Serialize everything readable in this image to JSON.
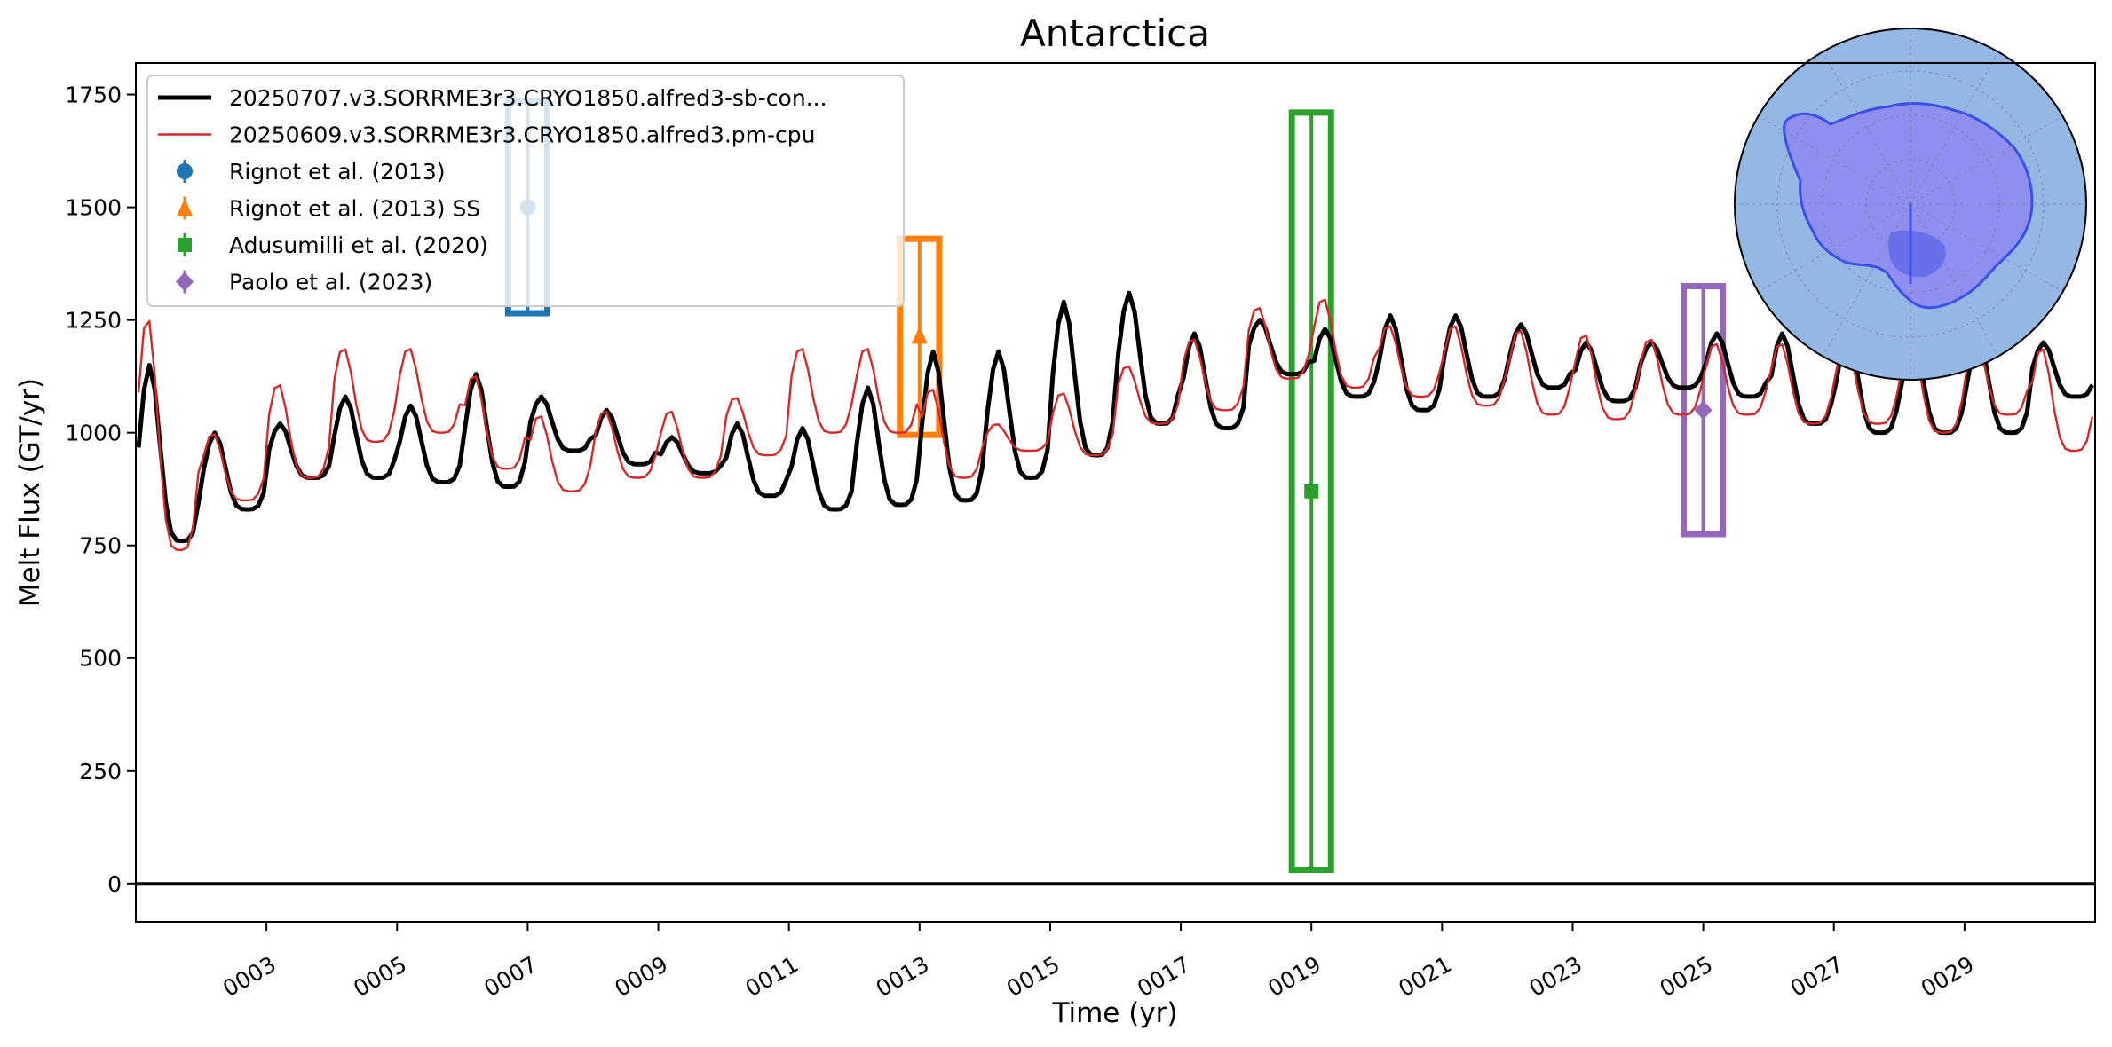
{
  "chart_data": {
    "type": "line",
    "title": "Antarctica",
    "xlabel": "Time (yr)",
    "ylabel": "Melt Flux (GT/yr)",
    "xlim": [
      1.0,
      31.0
    ],
    "ylim": [
      -85,
      1820
    ],
    "x_ticks": [
      3,
      5,
      7,
      9,
      11,
      13,
      15,
      17,
      19,
      21,
      23,
      25,
      27,
      29
    ],
    "x_tick_labels": [
      "0003",
      "0005",
      "0007",
      "0009",
      "0011",
      "0013",
      "0015",
      "0017",
      "0019",
      "0021",
      "0023",
      "0025",
      "0027",
      "0029"
    ],
    "y_ticks": [
      0,
      250,
      500,
      750,
      1000,
      1250,
      1500,
      1750
    ],
    "y_tick_labels": [
      "0",
      "250",
      "500",
      "750",
      "1000",
      "1250",
      "1500",
      "1750"
    ],
    "zero_line": 0,
    "grid": false,
    "legend_position": "upper-left",
    "series": [
      {
        "name": "20250707.v3.SORRME3r3.CRYO1850.alfred3-sb-con...",
        "color": "#000000",
        "style": "thick-line",
        "annual_peaks": [
          1150,
          1000,
          1020,
          1080,
          1060,
          1130,
          1080,
          1050,
          990,
          1020,
          1010,
          1100,
          1180,
          1180,
          1290,
          1310,
          1220,
          1250,
          1230,
          1260,
          1260,
          1240,
          1200,
          1200,
          1220,
          1220,
          1220,
          1210,
          1210,
          1200
        ],
        "annual_troughs": [
          760,
          830,
          900,
          900,
          890,
          880,
          960,
          930,
          910,
          860,
          830,
          840,
          850,
          900,
          950,
          1020,
          1010,
          1130,
          1080,
          1050,
          1080,
          1100,
          1070,
          1100,
          1080,
          1020,
          1000,
          1000,
          1000,
          1080
        ]
      },
      {
        "name": "20250609.v3.SORRME3r3.CRYO1850.alfred3.pm-cpu",
        "color": "#d62728",
        "style": "thin-line",
        "annual_peaks": [
          1260,
          1000,
          1110,
          1190,
          1190,
          1130,
          1040,
          1050,
          1050,
          1080,
          1190,
          1190,
          1100,
          1020,
          1090,
          1150,
          1210,
          1280,
          1300,
          1240,
          1240,
          1230,
          1220,
          1210,
          1200,
          1200,
          1200,
          1210,
          1200,
          1190
        ],
        "annual_troughs": [
          740,
          850,
          900,
          980,
          1000,
          920,
          870,
          900,
          900,
          950,
          1000,
          1000,
          900,
          960,
          950,
          1020,
          1050,
          1120,
          1100,
          1080,
          1060,
          1040,
          1030,
          1040,
          1040,
          1020,
          1020,
          1000,
          1040,
          960
        ]
      }
    ],
    "observations": [
      {
        "name": "Rignot et al. (2013)",
        "color": "#1f77b4",
        "marker": "circle",
        "x": 7.0,
        "y": 1500,
        "ymin": 1265,
        "ymax": 1735,
        "xmin": 6.7,
        "xmax": 7.3
      },
      {
        "name": "Rignot et al. (2013) SS",
        "color": "#ff7f0e",
        "marker": "triangle",
        "x": 13.0,
        "y": 1215,
        "ymin": 995,
        "ymax": 1430,
        "xmin": 12.7,
        "xmax": 13.3
      },
      {
        "name": "Adusumilli et al. (2020)",
        "color": "#2ca02c",
        "marker": "square",
        "x": 19.0,
        "y": 870,
        "ymin": 30,
        "ymax": 1710,
        "xmin": 18.7,
        "xmax": 19.3
      },
      {
        "name": "Paolo et al. (2023)",
        "color": "#9467bd",
        "marker": "diamond",
        "x": 25.0,
        "y": 1050,
        "ymin": 775,
        "ymax": 1325,
        "xmin": 24.7,
        "xmax": 25.3
      }
    ],
    "inset": {
      "type": "polar-map",
      "region": "Antarctica",
      "position": "top-right",
      "ocean_color": "#95b7e3",
      "land_color": "#8f8ff0",
      "coast_color": "#3b50e8"
    }
  }
}
